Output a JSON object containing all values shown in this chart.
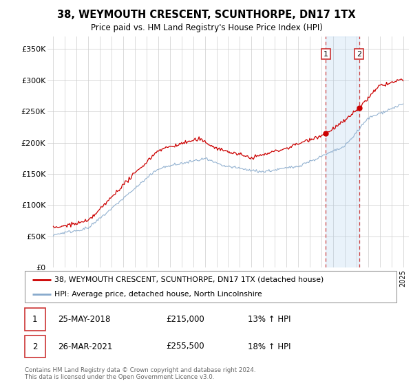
{
  "title": "38, WEYMOUTH CRESCENT, SCUNTHORPE, DN17 1TX",
  "subtitle": "Price paid vs. HM Land Registry's House Price Index (HPI)",
  "xlim": [
    1994.5,
    2025.5
  ],
  "ylim": [
    0,
    370000
  ],
  "yticks": [
    0,
    50000,
    100000,
    150000,
    200000,
    250000,
    300000,
    350000
  ],
  "ytick_labels": [
    "£0",
    "£50K",
    "£100K",
    "£150K",
    "£200K",
    "£250K",
    "£300K",
    "£350K"
  ],
  "sale1_x": 2018.38,
  "sale1_y": 215000,
  "sale1_label": "1",
  "sale1_date": "25-MAY-2018",
  "sale1_price": "£215,000",
  "sale1_hpi": "13% ↑ HPI",
  "sale2_x": 2021.23,
  "sale2_y": 255500,
  "sale2_label": "2",
  "sale2_date": "26-MAR-2021",
  "sale2_price": "£255,500",
  "sale2_hpi": "18% ↑ HPI",
  "line_color_house": "#cc0000",
  "line_color_hpi": "#88aacc",
  "background_color": "#ffffff",
  "plot_bg_color": "#ffffff",
  "grid_color": "#cccccc",
  "legend_line1": "38, WEYMOUTH CRESCENT, SCUNTHORPE, DN17 1TX (detached house)",
  "legend_line2": "HPI: Average price, detached house, North Lincolnshire",
  "footer": "Contains HM Land Registry data © Crown copyright and database right 2024.\nThis data is licensed under the Open Government Licence v3.0.",
  "shade_color": "#ddeeff"
}
